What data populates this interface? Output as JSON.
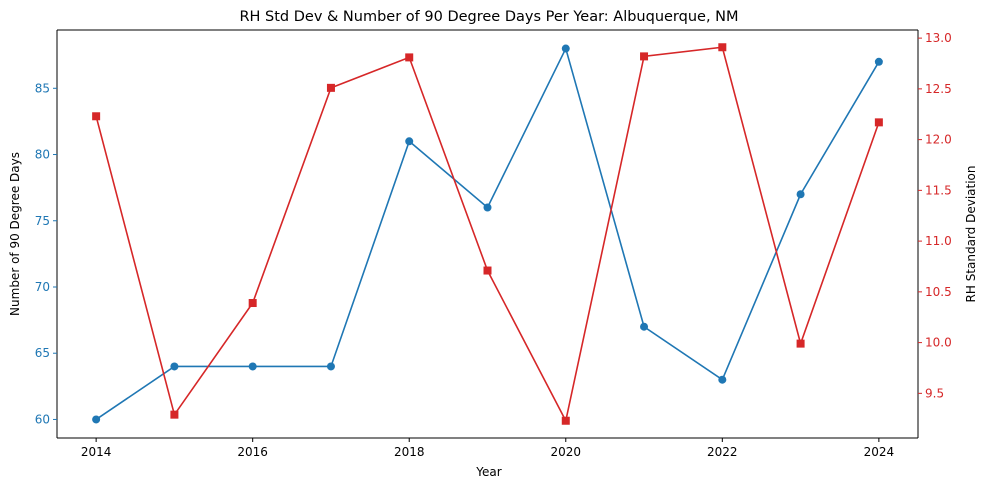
{
  "chart_data": {
    "type": "line",
    "title": "RH Std Dev & Number of 90 Degree Days Per Year: Albuquerque, NM",
    "xlabel": "Year",
    "x": [
      2014,
      2015,
      2016,
      2017,
      2018,
      2019,
      2020,
      2021,
      2022,
      2023,
      2024
    ],
    "x_ticks": [
      2014,
      2016,
      2018,
      2020,
      2022,
      2024
    ],
    "xlim": [
      2013.5,
      2024.5
    ],
    "grid": false,
    "series": [
      {
        "axis": "left",
        "color": "#1f77b4",
        "marker": "circle",
        "values": [
          60,
          64,
          64,
          64,
          81,
          76,
          88,
          67,
          63,
          77,
          87
        ]
      },
      {
        "axis": "right",
        "color": "#d62728",
        "marker": "square",
        "values": [
          12.23,
          9.29,
          10.39,
          12.51,
          12.81,
          10.71,
          9.23,
          12.82,
          12.91,
          9.99,
          12.17
        ]
      }
    ],
    "y_left": {
      "label": "Number of 90 Degree Days",
      "color": "#1f77b4",
      "ticks": [
        60,
        65,
        70,
        75,
        80,
        85
      ],
      "ylim": [
        58.6,
        89.4
      ]
    },
    "y_right": {
      "label": "RH Standard Deviation",
      "color": "#d62728",
      "ticks": [
        9.5,
        10.0,
        10.5,
        11.0,
        11.5,
        12.0,
        12.5,
        13.0
      ],
      "tick_labels": [
        "9.5",
        "10.0",
        "10.5",
        "11.0",
        "11.5",
        "12.0",
        "12.5",
        "13.0"
      ],
      "ylim": [
        9.06,
        13.08
      ]
    }
  }
}
